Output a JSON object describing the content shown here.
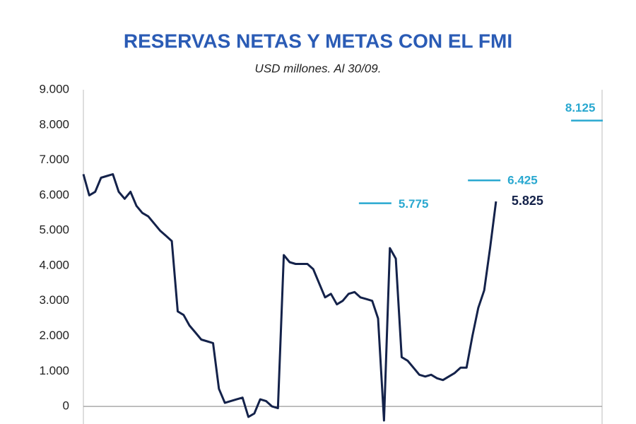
{
  "chart_data": {
    "type": "line",
    "title": "RESERVAS NETAS Y METAS CON EL FMI",
    "subtitle": "USD millones. Al 30/09.",
    "ylim": [
      -500,
      9000
    ],
    "xlim": [
      0,
      88
    ],
    "yticks": [
      0,
      {
        "value": 1000,
        "label": "1.000"
      },
      {
        "value": 2000,
        "label": "2.000"
      },
      {
        "value": 3000,
        "label": "3.000"
      },
      {
        "value": 4000,
        "label": "4.000"
      },
      {
        "value": 5000,
        "label": "5.000"
      },
      {
        "value": 6000,
        "label": "6.000"
      },
      {
        "value": 7000,
        "label": "7.000"
      },
      {
        "value": 8000,
        "label": "8.000"
      },
      {
        "value": 9000,
        "label": "9.000"
      }
    ],
    "series": [
      {
        "color": "#14224a",
        "values": [
          6600,
          6000,
          6100,
          6500,
          6550,
          6600,
          6100,
          5900,
          6100,
          5700,
          5500,
          5400,
          5200,
          5000,
          4850,
          4700,
          2700,
          2600,
          2300,
          2100,
          1900,
          1850,
          1800,
          500,
          100,
          150,
          200,
          250,
          -300,
          -200,
          200,
          150,
          0,
          -50,
          4300,
          4100,
          4050,
          4050,
          4050,
          3900,
          3500,
          3100,
          3200,
          2900,
          3000,
          3200,
          3250,
          3100,
          3050,
          3000,
          2500,
          -400,
          4500,
          4200,
          1400,
          1300,
          1100,
          900,
          850,
          900,
          800,
          750,
          850,
          950,
          1100,
          1100,
          2000,
          2800,
          3300,
          4500,
          5825
        ],
        "end_label": "5.825"
      }
    ],
    "targets": {
      "color": "#29a8d0",
      "x": [
        49.5,
        68,
        85.5
      ],
      "values": [
        5775,
        6425,
        8125
      ],
      "value_labels": [
        "5.775",
        "6.425",
        "8.125"
      ]
    }
  }
}
